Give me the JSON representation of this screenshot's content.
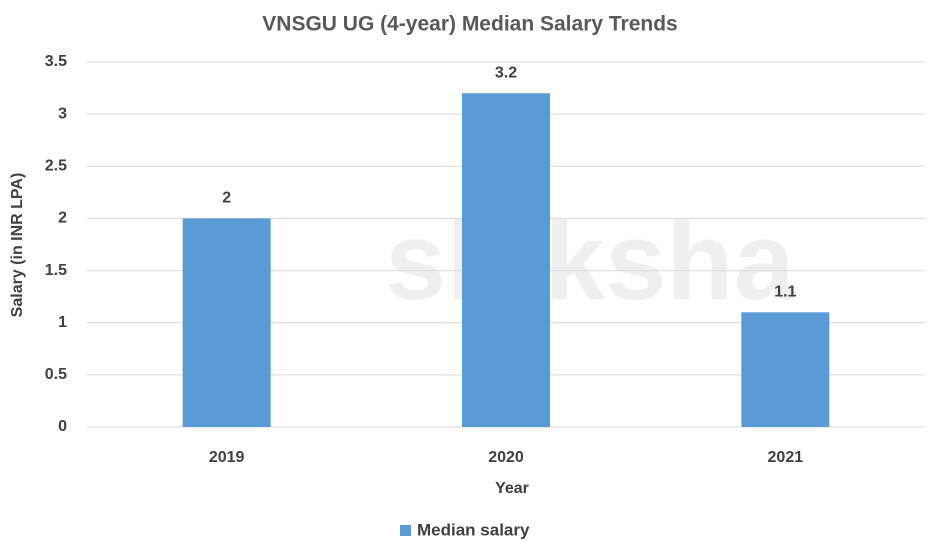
{
  "chart_data": {
    "type": "bar",
    "title": "VNSGU UG (4-year) Median Salary Trends",
    "watermark": "shiksha",
    "xlabel": "Year",
    "ylabel": "Salary (in INR LPA)",
    "categories": [
      "2019",
      "2020",
      "2021"
    ],
    "series": [
      {
        "name": "Median salary",
        "color": "#5b9bd5",
        "values": [
          2,
          3.2,
          1.1
        ]
      }
    ],
    "ylim": [
      0,
      3.5
    ],
    "yticks": [
      0,
      0.5,
      1,
      1.5,
      2,
      2.5,
      3,
      3.5
    ],
    "grid": true,
    "legend": "bottom"
  }
}
